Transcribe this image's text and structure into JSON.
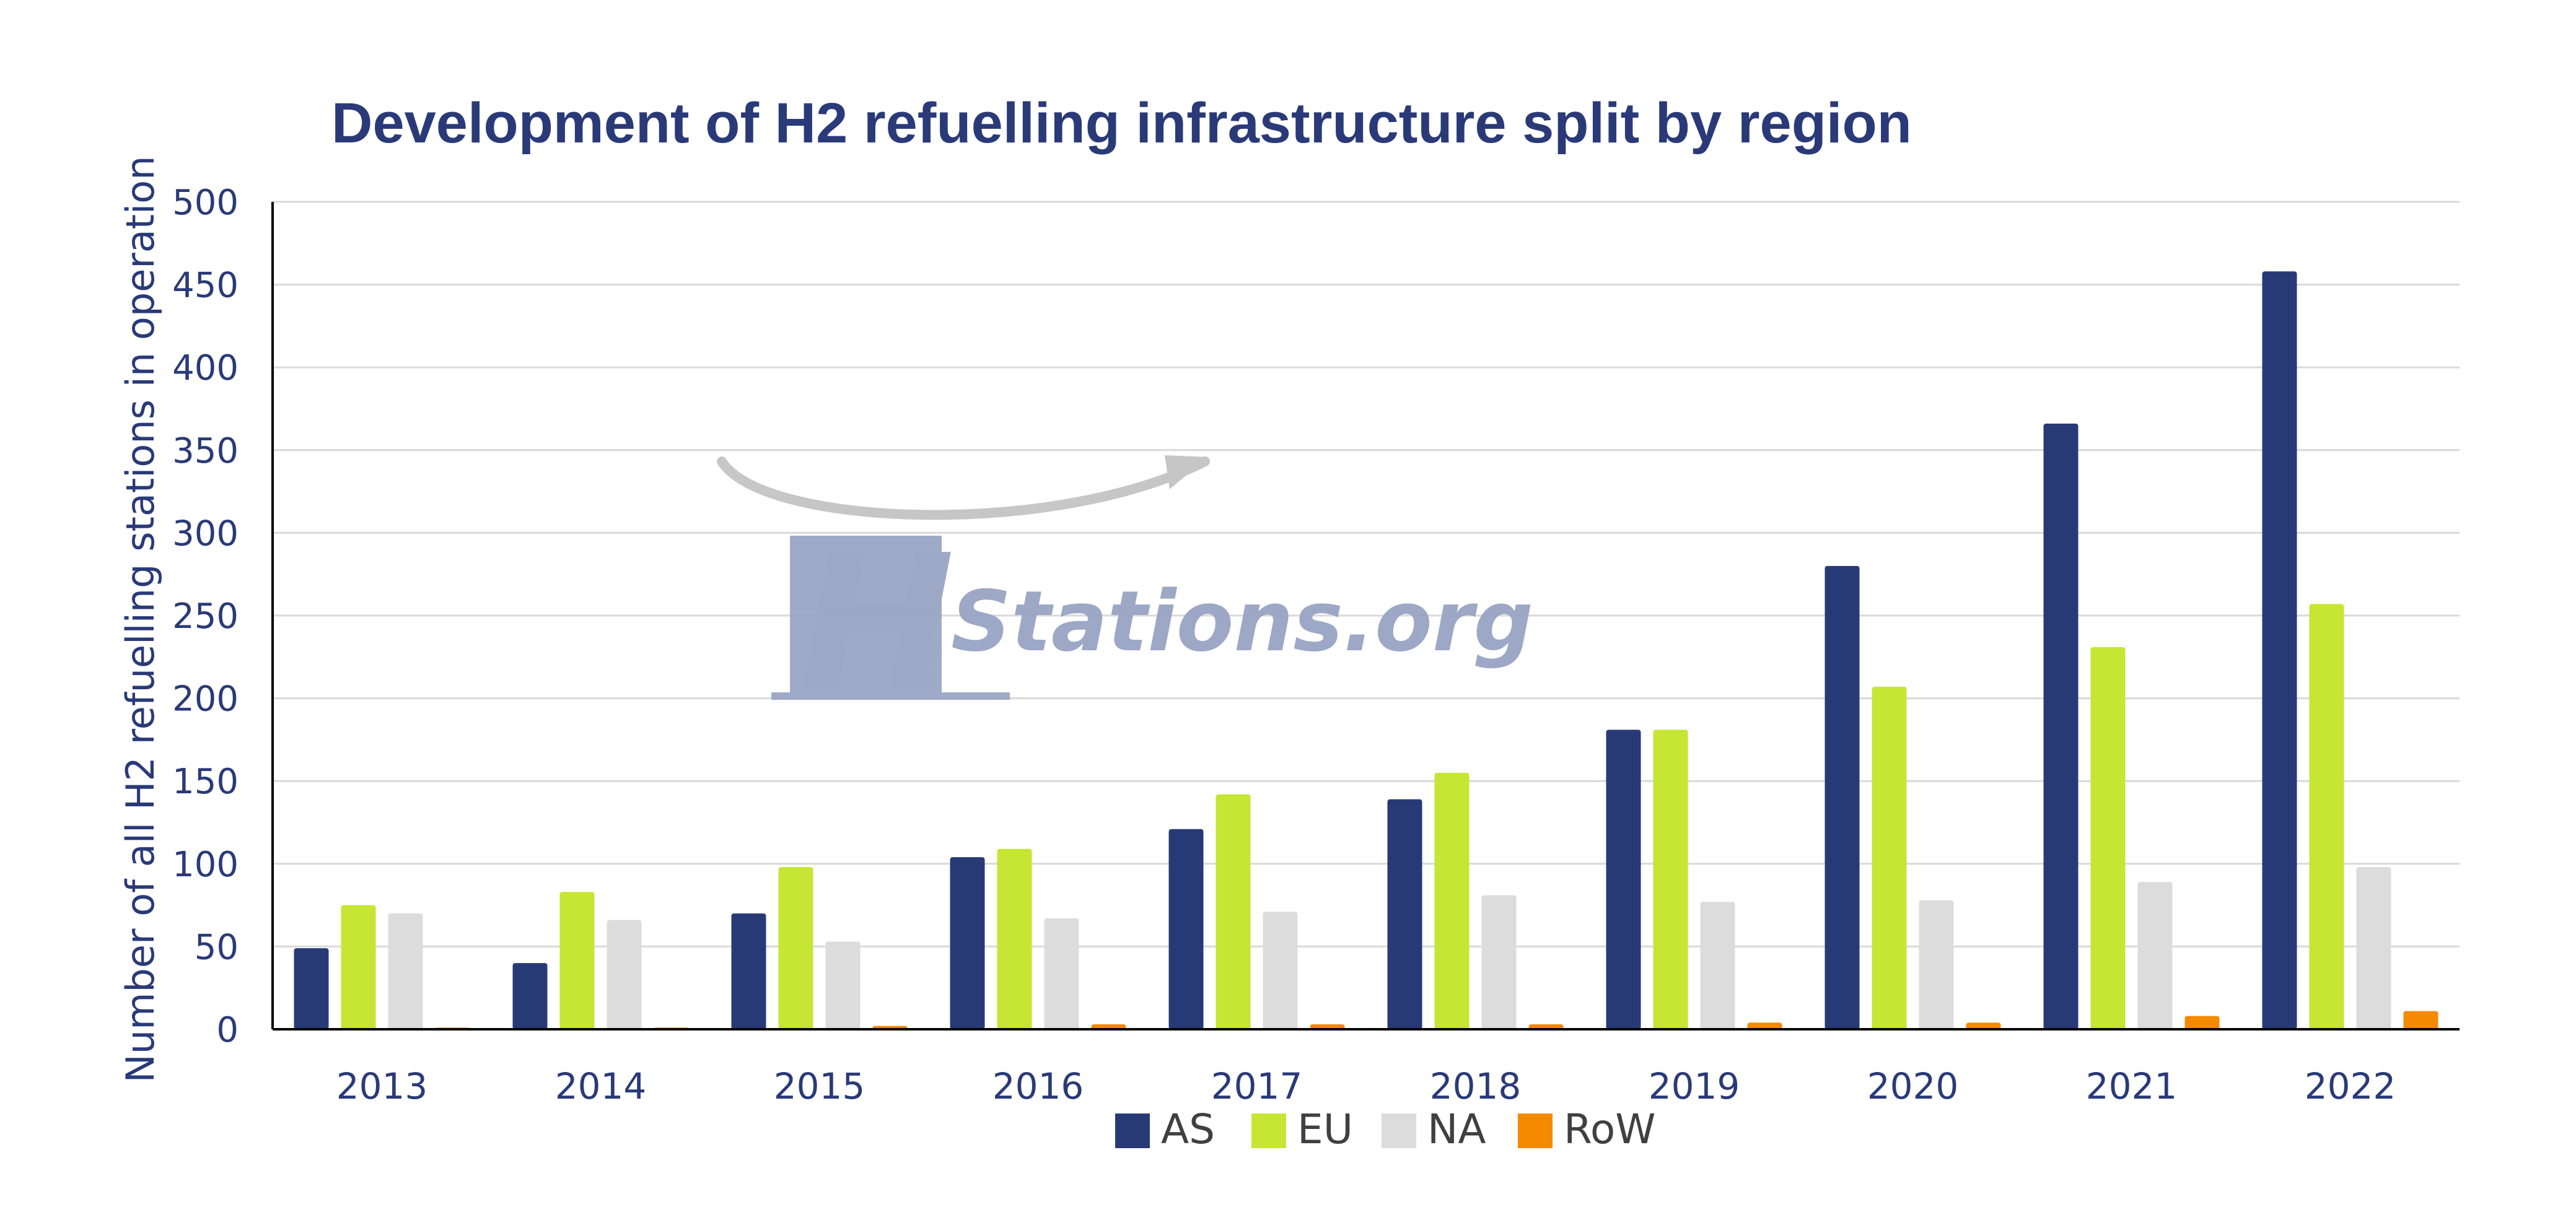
{
  "colors": {
    "AS": "#283a76",
    "EU": "#c6e633",
    "NA": "#dcdcdc",
    "RoW": "#f58a00",
    "title": "#2a3a78",
    "grid": "#d9d9d9",
    "axis": "#000000"
  },
  "watermark": {
    "logo_letter": "H",
    "logo_subscript": "2",
    "logo_text": "Stations.org"
  },
  "chart_data": {
    "type": "bar",
    "title": "Development of H2 refuelling infrastructure split by region",
    "xlabel": "",
    "ylabel": "Number of all H2 refuelling stations in operation",
    "ylim": [
      0,
      500
    ],
    "yticks": [
      0,
      50,
      100,
      150,
      200,
      250,
      300,
      350,
      400,
      450,
      500
    ],
    "grid": true,
    "legend_position": "bottom",
    "categories": [
      "2013",
      "2014",
      "2015",
      "2016",
      "2017",
      "2018",
      "2019",
      "2020",
      "2021",
      "2022"
    ],
    "series": [
      {
        "name": "AS",
        "values": [
          49,
          40,
          70,
          104,
          121,
          139,
          181,
          280,
          366,
          458
        ]
      },
      {
        "name": "EU",
        "values": [
          75,
          83,
          98,
          109,
          142,
          155,
          181,
          207,
          231,
          257
        ]
      },
      {
        "name": "NA",
        "values": [
          70,
          66,
          53,
          67,
          71,
          81,
          77,
          78,
          89,
          98
        ]
      },
      {
        "name": "RoW",
        "values": [
          1,
          1,
          2,
          3,
          3,
          3,
          4,
          4,
          8,
          11
        ]
      }
    ]
  }
}
